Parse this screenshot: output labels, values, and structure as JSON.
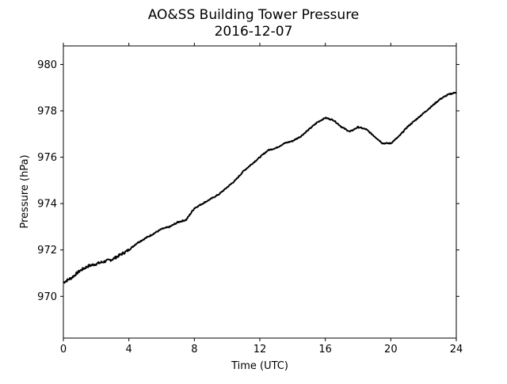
{
  "chart_data": {
    "type": "line",
    "title": "AO&SS Building Tower Pressure",
    "subtitle": "2016-12-07",
    "xlabel": "Time (UTC)",
    "ylabel": "Pressure (hPa)",
    "xlim": [
      0,
      24
    ],
    "ylim": [
      968.2,
      980.8
    ],
    "xticks": [
      0,
      4,
      8,
      12,
      16,
      20,
      24
    ],
    "yticks": [
      970,
      972,
      974,
      976,
      978,
      980
    ],
    "grid": false,
    "legend": "none",
    "series": [
      {
        "color": "#000000",
        "x": [
          0,
          0.5,
          1,
          1.5,
          2,
          2.5,
          3,
          3.5,
          4,
          4.5,
          5,
          5.5,
          6,
          6.5,
          7,
          7.5,
          8,
          8.5,
          9,
          9.5,
          10,
          10.5,
          11,
          11.5,
          12,
          12.5,
          13,
          13.5,
          14,
          14.5,
          15,
          15.5,
          16,
          16.5,
          17,
          17.5,
          18,
          18.5,
          19,
          19.5,
          20,
          20.5,
          21,
          21.5,
          22,
          22.5,
          23,
          23.5,
          24
        ],
        "values": [
          970.6,
          970.8,
          971.1,
          971.3,
          971.4,
          971.5,
          971.6,
          971.8,
          972.0,
          972.3,
          972.5,
          972.7,
          972.9,
          973.0,
          973.2,
          973.3,
          973.8,
          974.0,
          974.2,
          974.4,
          974.7,
          975.0,
          975.4,
          975.7,
          976.0,
          976.3,
          976.4,
          976.6,
          976.7,
          976.9,
          977.2,
          977.5,
          977.7,
          977.6,
          977.3,
          977.1,
          977.3,
          977.2,
          976.9,
          976.6,
          976.6,
          976.9,
          977.3,
          977.6,
          977.9,
          978.2,
          978.5,
          978.7,
          978.8
        ]
      }
    ]
  }
}
